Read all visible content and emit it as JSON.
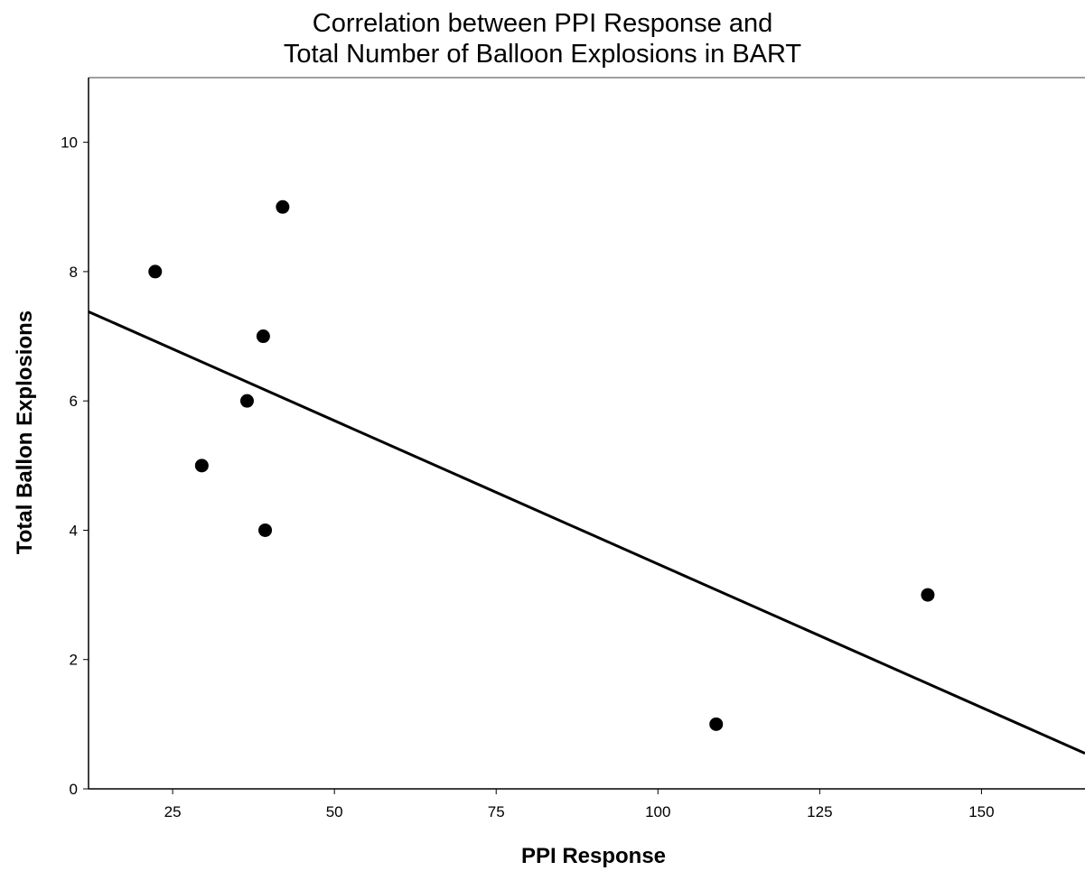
{
  "chart_data": {
    "type": "scatter",
    "title_lines": [
      "Correlation between PPI Response and",
      "Total Number of Balloon Explosions in BART"
    ],
    "xlabel": "PPI Response",
    "ylabel": "Total Ballon Explosions",
    "xlim": [
      12,
      166
    ],
    "ylim": [
      0,
      11
    ],
    "xticks": [
      25,
      50,
      75,
      100,
      125,
      150
    ],
    "yticks": [
      0,
      2,
      4,
      6,
      8,
      10
    ],
    "points": [
      {
        "x": 22.3,
        "y": 8
      },
      {
        "x": 42,
        "y": 9
      },
      {
        "x": 39,
        "y": 7
      },
      {
        "x": 36.5,
        "y": 6
      },
      {
        "x": 29.5,
        "y": 5
      },
      {
        "x": 39.3,
        "y": 4
      },
      {
        "x": 141.7,
        "y": 3
      },
      {
        "x": 109,
        "y": 1
      }
    ],
    "fit_line": {
      "x": [
        12,
        166
      ],
      "y": [
        7.38,
        0.55
      ]
    },
    "grid": false,
    "colors": {
      "points": "#000000",
      "line": "#000000",
      "frame": "#000000"
    }
  }
}
